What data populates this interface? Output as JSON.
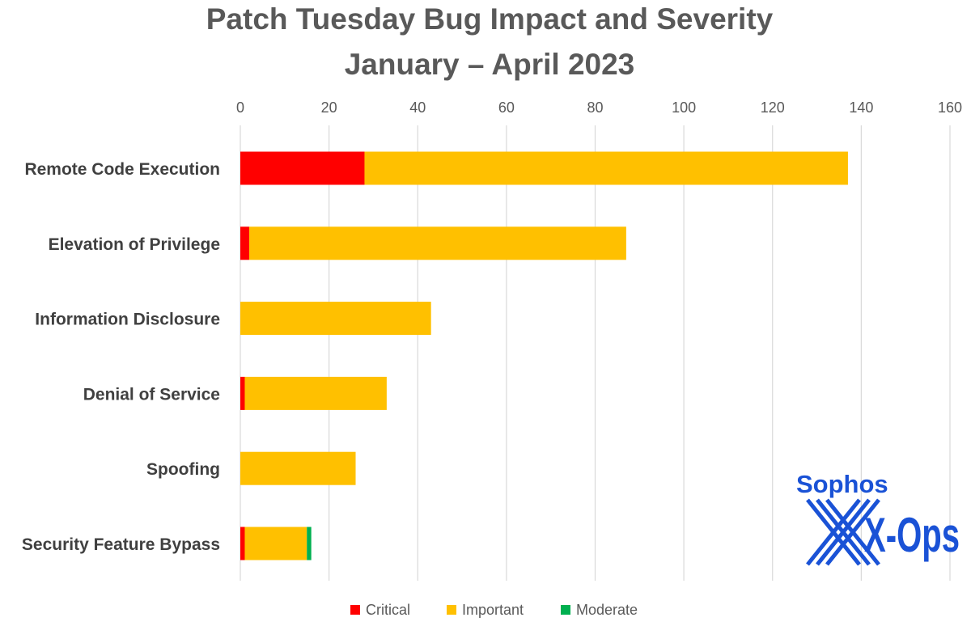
{
  "chart_data": {
    "type": "bar",
    "orientation": "horizontal",
    "stacked": true,
    "title": "Patch Tuesday Bug Impact and Severity",
    "subtitle": "January – April 2023",
    "categories": [
      "Remote Code Execution",
      "Elevation of Privilege",
      "Information Disclosure",
      "Denial of Service",
      "Spoofing",
      "Security Feature Bypass"
    ],
    "series": [
      {
        "name": "Critical",
        "color": "#ff0000",
        "values": [
          28,
          2,
          0,
          1,
          0,
          1
        ]
      },
      {
        "name": "Important",
        "color": "#ffc000",
        "values": [
          109,
          85,
          43,
          32,
          26,
          14
        ]
      },
      {
        "name": "Moderate",
        "color": "#00b050",
        "values": [
          0,
          0,
          0,
          0,
          0,
          1
        ]
      }
    ],
    "xlim": [
      0,
      160
    ],
    "xticks": [
      "0",
      "20",
      "40",
      "60",
      "80",
      "100",
      "120",
      "140",
      "160"
    ],
    "axis_position": "top",
    "grid": true,
    "legend": "bottom"
  },
  "logo": {
    "line1": "Sophos",
    "line2": "X-Ops",
    "color": "#1a52d6"
  }
}
